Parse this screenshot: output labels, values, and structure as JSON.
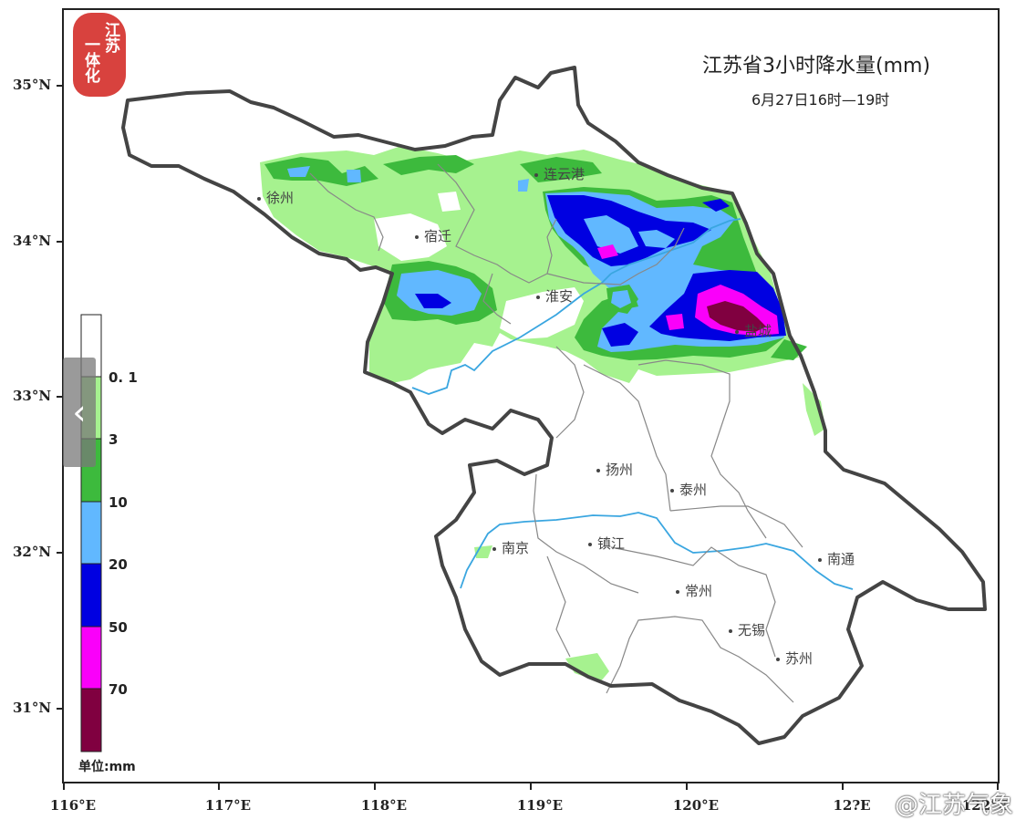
{
  "map": {
    "title": "江苏省3小时降水量(mm)",
    "subtitle": "6月27日16时—19时",
    "lat_ticks": [
      "35°N",
      "34°N",
      "33°N",
      "32°N",
      "31°N"
    ],
    "lon_ticks": [
      "116°E",
      "117°E",
      "118°E",
      "119°E",
      "120°E",
      "12?E",
      "122°E"
    ],
    "cities": [
      {
        "name": "徐州"
      },
      {
        "name": "宿迁"
      },
      {
        "name": "连云港"
      },
      {
        "name": "淮安"
      },
      {
        "name": "盐城"
      },
      {
        "name": "扬州"
      },
      {
        "name": "泰州"
      },
      {
        "name": "南京"
      },
      {
        "name": "镇江"
      },
      {
        "name": "南通"
      },
      {
        "name": "常州"
      },
      {
        "name": "无锡"
      },
      {
        "name": "苏州"
      }
    ]
  },
  "legend": {
    "levels": [
      "0. 1",
      "3",
      "10",
      "20",
      "50",
      "70"
    ],
    "colors": [
      "#ffffff",
      "#a6f28f",
      "#3dba3d",
      "#61b8ff",
      "#0000e1",
      "#fa00fa",
      "#800040"
    ],
    "unit": "单位:mm"
  },
  "logo": {
    "text": "江苏一体化"
  },
  "watermark": {
    "text": "@江苏气象"
  },
  "nav": {
    "icon": "chevron-left-icon"
  }
}
